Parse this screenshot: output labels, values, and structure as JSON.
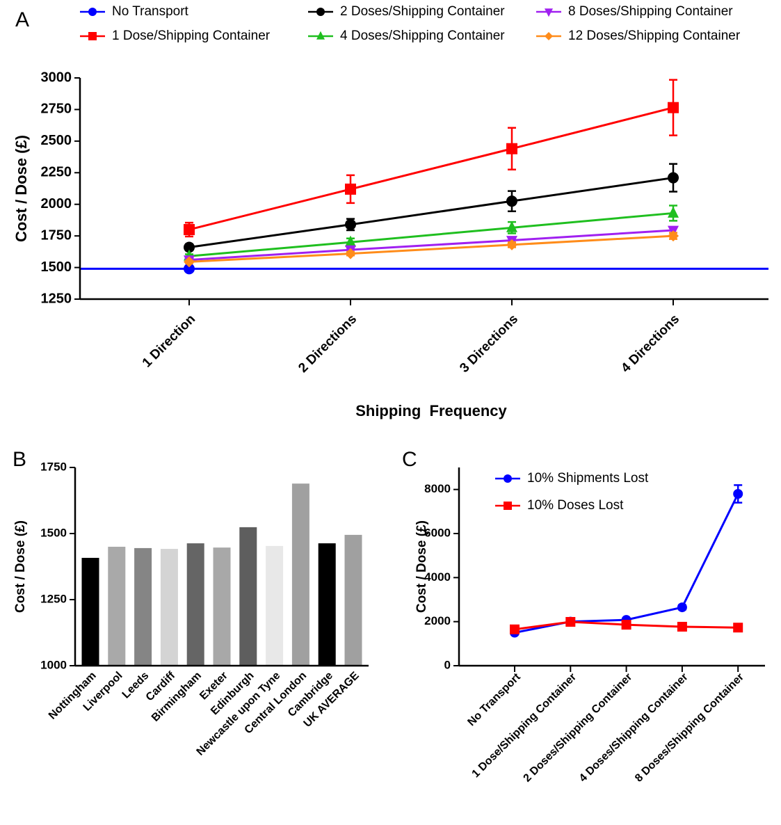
{
  "chart_data": [
    {
      "type": "line",
      "panel_label": "A",
      "x_label": "Shipping  Frequency",
      "y_label": "Cost / Dose (£)",
      "categories": [
        "1 Direction",
        "2 Directions",
        "3 Directions",
        "4 Directions"
      ],
      "ylim": [
        1250,
        3000
      ],
      "yticks": [
        1250,
        1500,
        1750,
        2000,
        2250,
        2500,
        2750,
        3000
      ],
      "legend": "top",
      "series": [
        {
          "name": "No Transport",
          "color": "#0000ff",
          "marker": "circle",
          "hline": true,
          "values": [
            1490,
            null,
            null,
            null
          ],
          "errors": [
            0,
            null,
            null,
            null
          ]
        },
        {
          "name": "1 Dose/Shipping Container",
          "color": "#ff0000",
          "marker": "square",
          "values": [
            1800,
            2120,
            2440,
            2765
          ],
          "errors": [
            55,
            110,
            165,
            220
          ]
        },
        {
          "name": "2 Doses/Shipping Container",
          "color": "#000000",
          "marker": "circle",
          "values": [
            1660,
            1840,
            2025,
            2210
          ],
          "errors": [
            25,
            45,
            80,
            110
          ]
        },
        {
          "name": "4 Doses/Shipping Container",
          "color": "#1fbf1f",
          "marker": "triangle",
          "values": [
            1590,
            1700,
            1815,
            1930
          ],
          "errors": [
            15,
            30,
            45,
            60
          ]
        },
        {
          "name": "8 Doses/Shipping Container",
          "color": "#a020f0",
          "marker": "triangle-down",
          "values": [
            1560,
            1640,
            1715,
            1795
          ],
          "errors": [
            10,
            15,
            20,
            20
          ]
        },
        {
          "name": "12 Doses/Shipping Container",
          "color": "#ff8c1a",
          "marker": "diamond",
          "values": [
            1545,
            1610,
            1680,
            1750
          ],
          "errors": [
            10,
            15,
            20,
            25
          ]
        }
      ]
    },
    {
      "type": "bar",
      "panel_label": "B",
      "y_label": "Cost  /  Dose (£)",
      "categories": [
        "Nottingham",
        "Liverpool",
        "Leeds",
        "Cardiff",
        "Birmingham",
        "Exeter",
        "Edinburgh",
        "Newcastle upon Tyne",
        "Central London",
        "Cambridge",
        "UK AVERAGE"
      ],
      "values": [
        1408,
        1450,
        1445,
        1442,
        1463,
        1447,
        1524,
        1453,
        1689,
        1463,
        1495
      ],
      "colors": [
        "#000000",
        "#a9a9a9",
        "#858585",
        "#d4d4d4",
        "#656565",
        "#a8a8a8",
        "#5e5e5e",
        "#e8e8e8",
        "#a0a0a0",
        "#000000",
        "#a0a0a0"
      ],
      "ylim": [
        1000,
        1750
      ],
      "yticks": [
        1000,
        1250,
        1500,
        1750
      ]
    },
    {
      "type": "line",
      "panel_label": "C",
      "y_label": "Cost / Dose (£)",
      "categories": [
        "No Transport",
        "1 Dose/Shipping Container",
        "2 Doses/Shipping Container",
        "4 Doses/Shipping Container",
        "8 Doses/Shipping Container"
      ],
      "ylim": [
        0,
        9000
      ],
      "yticks": [
        0,
        2000,
        4000,
        6000,
        8000
      ],
      "legend": "upper left",
      "series": [
        {
          "name": "10% Shipments Lost",
          "color": "#0000ff",
          "marker": "circle",
          "values": [
            1500,
            2000,
            2080,
            2650,
            7800
          ],
          "errors": [
            50,
            50,
            60,
            100,
            400
          ]
        },
        {
          "name": "10% Doses Lost",
          "color": "#ff0000",
          "marker": "square",
          "values": [
            1650,
            1990,
            1860,
            1770,
            1730
          ],
          "errors": [
            40,
            60,
            40,
            30,
            30
          ]
        }
      ]
    }
  ]
}
